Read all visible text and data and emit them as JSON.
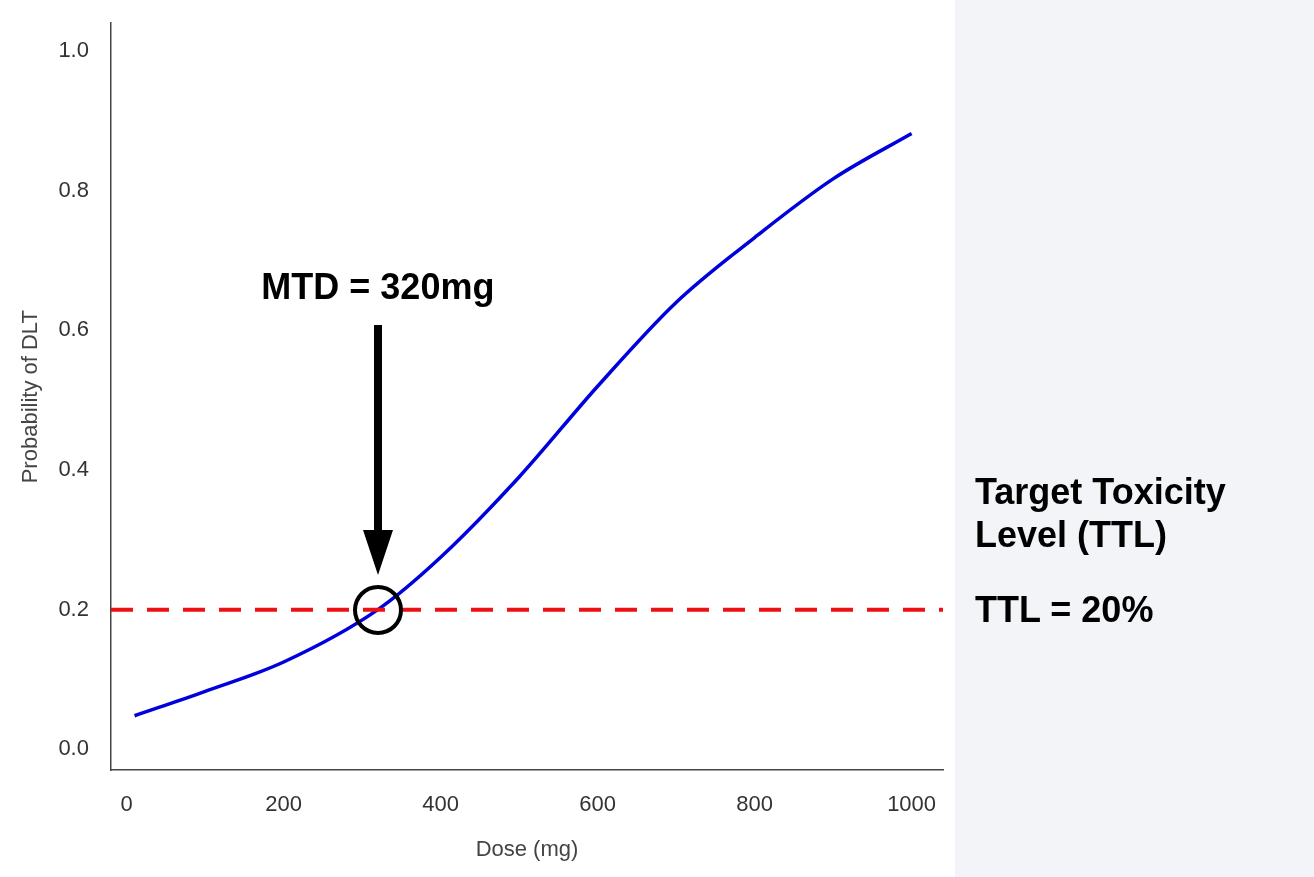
{
  "chart_data": {
    "type": "line",
    "xlabel": "Dose (mg)",
    "ylabel": "Probability of DLT",
    "xlim": [
      -20,
      1040
    ],
    "xticks": [
      0,
      200,
      400,
      600,
      800,
      1000
    ],
    "ylim": [
      -0.03,
      1.04
    ],
    "yticks": [
      {
        "value": 0,
        "label": "0.0"
      },
      {
        "value": 0.2,
        "label": "0.2"
      },
      {
        "value": 0.4,
        "label": "0.4"
      },
      {
        "value": 0.6,
        "label": "0.6"
      },
      {
        "value": 0.8,
        "label": "0.8"
      },
      {
        "value": 1,
        "label": "1.0"
      }
    ],
    "series": [
      {
        "color": "#0000dd",
        "x": [
          10,
          100,
          200,
          320,
          400,
          500,
          600,
          700,
          800,
          900,
          1000
        ],
        "values": [
          0.048,
          0.083,
          0.125,
          0.2,
          0.275,
          0.39,
          0.52,
          0.64,
          0.733,
          0.817,
          0.882
        ]
      }
    ],
    "ref_lines": [
      {
        "axis": "y",
        "value": 0.2,
        "label": "TTL = 20%",
        "color": "#ee1111",
        "line_style": "dashed"
      }
    ],
    "annotations": [
      "MTD = 320mg",
      "Target Toxicity Level (TTL)"
    ],
    "grid": false,
    "legend": false,
    "marker": "none"
  }
}
